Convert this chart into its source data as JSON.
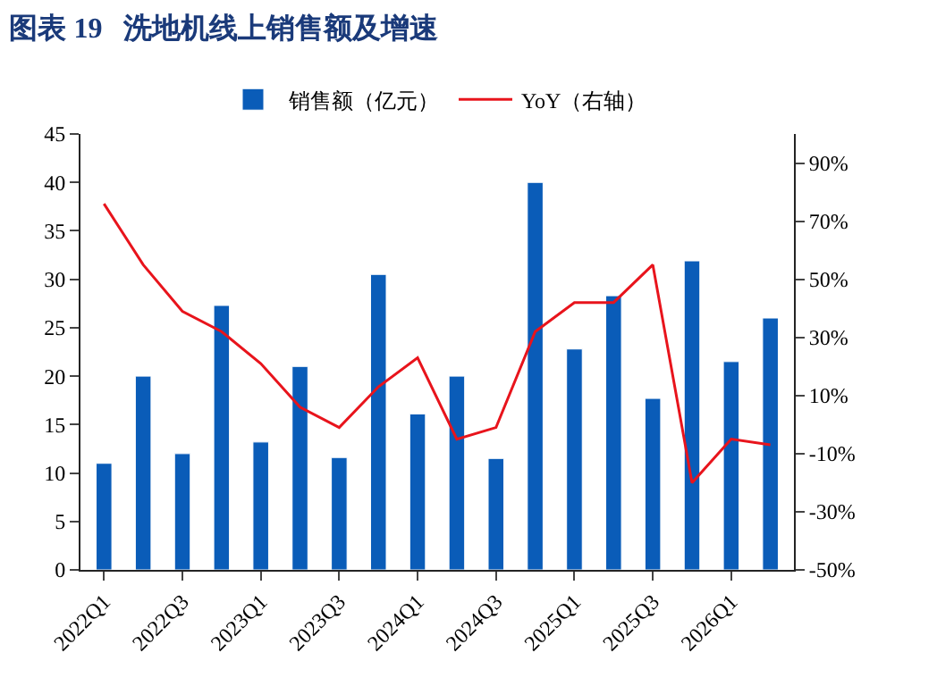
{
  "chart_data": {
    "type": "bar",
    "title": "图表 19   洗地机线上销售额及增速",
    "categories": [
      "2022Q1",
      null,
      "2022Q3",
      null,
      "2023Q1",
      null,
      "2023Q3",
      null,
      "2024Q1",
      null,
      "2024Q3",
      null,
      "2025Q1",
      null,
      "2025Q3",
      null,
      "2026Q1",
      null
    ],
    "series": [
      {
        "name": "销售额（亿元）",
        "color": "#0a5cb8",
        "values": [
          11,
          20,
          12,
          27.3,
          13.2,
          21,
          11.6,
          30.5,
          16.1,
          20,
          11.5,
          40,
          22.8,
          28.3,
          17.7,
          31.9,
          21.5,
          26
        ]
      },
      {
        "name": "YoY（右轴）",
        "type": "line",
        "axis": "y2",
        "color": "#e8141c",
        "values": [
          76,
          55,
          39,
          32,
          21,
          6,
          -1,
          13,
          23,
          -5,
          -1,
          32,
          42,
          42,
          55,
          -20,
          -5,
          -7
        ]
      }
    ],
    "ylim": [
      0,
      45
    ],
    "yticks": [
      0,
      5,
      10,
      15,
      20,
      25,
      30,
      35,
      40,
      45
    ],
    "y2lim": [
      -50,
      100
    ],
    "y2ticks": [
      {
        "value": -50,
        "label": "-50%"
      },
      {
        "value": -30,
        "label": "-30%"
      },
      {
        "value": -10,
        "label": "-10%"
      },
      {
        "value": 10,
        "label": "10%"
      },
      {
        "value": 30,
        "label": "30%"
      },
      {
        "value": 50,
        "label": "50%"
      },
      {
        "value": 70,
        "label": "70%"
      },
      {
        "value": 90,
        "label": "90%"
      }
    ],
    "grid": false,
    "legend": "top",
    "marker": "none",
    "line_style": "solid"
  }
}
